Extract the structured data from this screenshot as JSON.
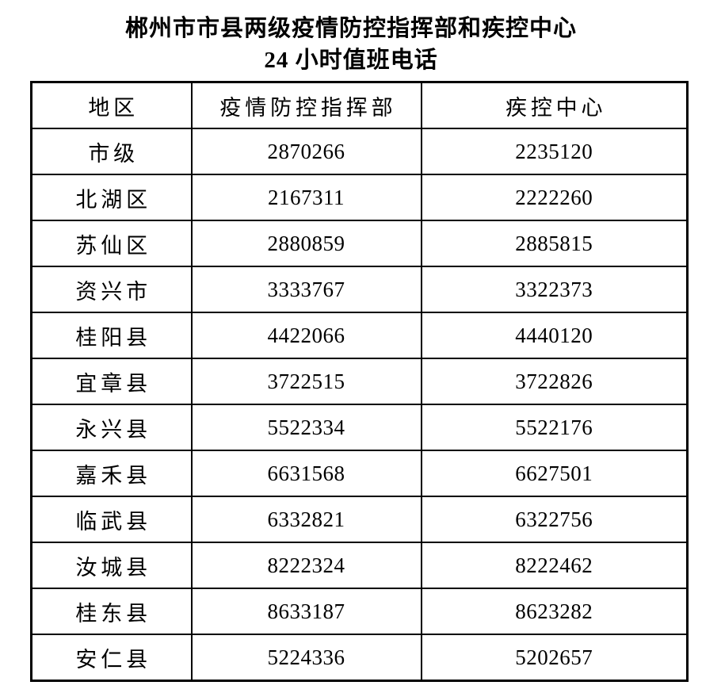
{
  "page": {
    "title_line1": "郴州市市县两级疫情防控指挥部和疾控中心",
    "title_line2": "24 小时值班电话"
  },
  "table": {
    "columns": [
      "地区",
      "疫情防控指挥部",
      "疾控中心"
    ],
    "rows": [
      {
        "region": "市级",
        "command_center": "2870266",
        "cdc": "2235120"
      },
      {
        "region": "北湖区",
        "command_center": "2167311",
        "cdc": "2222260"
      },
      {
        "region": "苏仙区",
        "command_center": "2880859",
        "cdc": "2885815"
      },
      {
        "region": "资兴市",
        "command_center": "3333767",
        "cdc": "3322373"
      },
      {
        "region": "桂阳县",
        "command_center": "4422066",
        "cdc": "4440120"
      },
      {
        "region": "宜章县",
        "command_center": "3722515",
        "cdc": "3722826"
      },
      {
        "region": "永兴县",
        "command_center": "5522334",
        "cdc": "5522176"
      },
      {
        "region": "嘉禾县",
        "command_center": "6631568",
        "cdc": "6627501"
      },
      {
        "region": "临武县",
        "command_center": "6332821",
        "cdc": "6322756"
      },
      {
        "region": "汝城县",
        "command_center": "8222324",
        "cdc": "8222462"
      },
      {
        "region": "桂东县",
        "command_center": "8633187",
        "cdc": "8623282"
      },
      {
        "region": "安仁县",
        "command_center": "5224336",
        "cdc": "5202657"
      }
    ]
  },
  "colors": {
    "text": "#000000",
    "border": "#000000",
    "background": "#ffffff"
  }
}
